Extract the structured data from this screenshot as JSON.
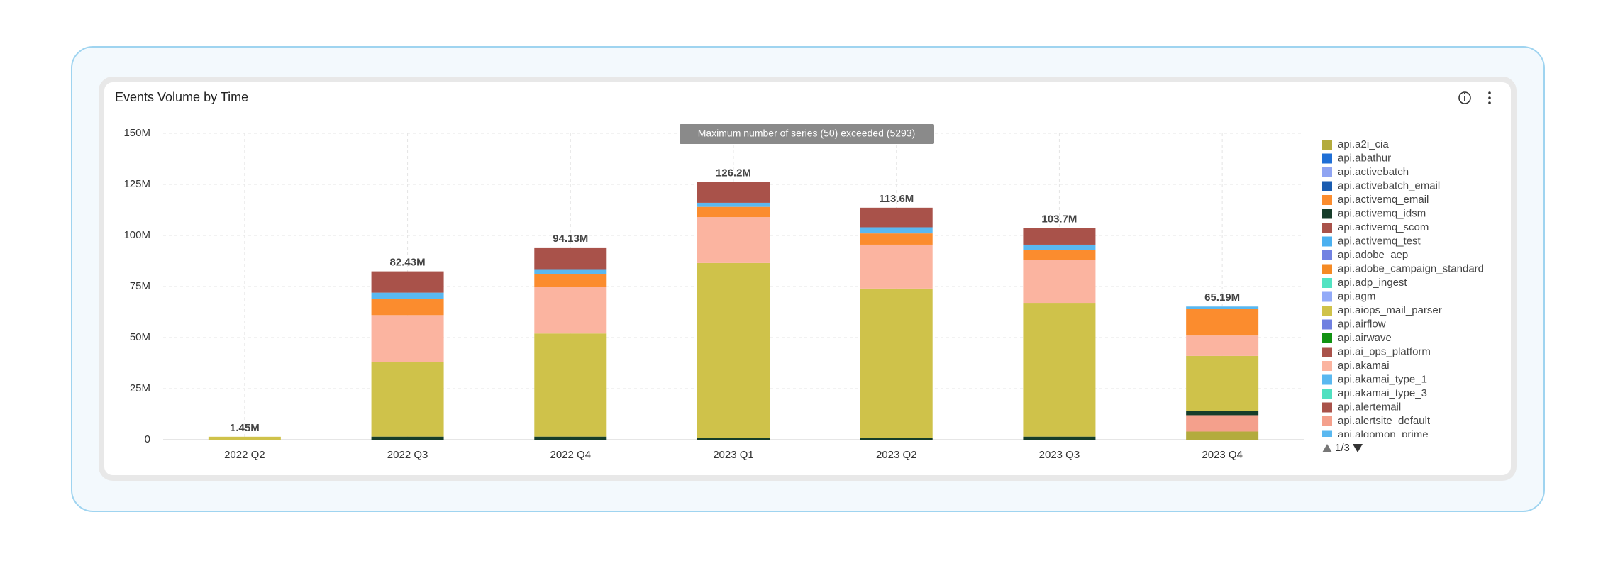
{
  "chart_data": {
    "type": "stacked_bar",
    "title": "Events Volume by Time",
    "notice": "Maximum number of series (50) exceeded (5293)",
    "categories": [
      "2022 Q2",
      "2022 Q3",
      "2022 Q4",
      "2023 Q1",
      "2023 Q2",
      "2023 Q3",
      "2023 Q4"
    ],
    "totals": [
      1450000,
      82430000,
      94130000,
      126200000,
      113600000,
      103700000,
      65190000
    ],
    "total_labels": [
      "1.45M",
      "82.43M",
      "94.13M",
      "126.2M",
      "113.6M",
      "103.7M",
      "65.19M"
    ],
    "ylim": [
      0,
      150000000
    ],
    "yticks": [
      0,
      {
        "value": 25000000,
        "label": "25M"
      },
      {
        "value": 50000000,
        "label": "50M"
      },
      {
        "value": 75000000,
        "label": "75M"
      },
      {
        "value": 100000000,
        "label": "100M"
      },
      {
        "value": 125000000,
        "label": "125M"
      },
      {
        "value": 150000000,
        "label": "150M"
      }
    ],
    "grid": true,
    "legend_page": "1/3",
    "series": [
      {
        "name": "api.a2i_cia",
        "color": "#b3ab3d",
        "values": [
          0,
          0,
          0,
          0,
          0,
          0,
          4000000
        ]
      },
      {
        "name": "api.abathur",
        "color": "#1f6fd6",
        "values": [
          0,
          0,
          0,
          0,
          0,
          0,
          0
        ]
      },
      {
        "name": "api.activebatch",
        "color": "#8fa4f2",
        "values": [
          0,
          0,
          0,
          0,
          0,
          0,
          0
        ]
      },
      {
        "name": "api.activebatch_email",
        "color": "#1a5cb0",
        "values": [
          0,
          0,
          0,
          0,
          0,
          0,
          0
        ]
      },
      {
        "name": "api.activemq_email",
        "color": "#fb8c2e",
        "values": [
          0,
          8000000,
          6000000,
          5000000,
          5500000,
          5000000,
          13000000
        ]
      },
      {
        "name": "api.activemq_idsm",
        "color": "#163d2a",
        "values": [
          0,
          1500000,
          1500000,
          1000000,
          1000000,
          1500000,
          2000000
        ]
      },
      {
        "name": "api.activemq_scom",
        "color": "#a9524a",
        "values": [
          0,
          0,
          0,
          0,
          0,
          0,
          0
        ]
      },
      {
        "name": "api.activemq_test",
        "color": "#4bb0f0",
        "values": [
          0,
          0,
          0,
          0,
          0,
          0,
          0
        ]
      },
      {
        "name": "api.adobe_aep",
        "color": "#7282e2",
        "values": [
          0,
          0,
          0,
          0,
          0,
          0,
          0
        ]
      },
      {
        "name": "api.adobe_campaign_standard",
        "color": "#f58a24",
        "values": [
          0,
          0,
          0,
          0,
          0,
          0,
          0
        ]
      },
      {
        "name": "api.adp_ingest",
        "color": "#52e3c2",
        "values": [
          0,
          0,
          0,
          0,
          0,
          0,
          0
        ]
      },
      {
        "name": "api.agm",
        "color": "#92aaf8",
        "values": [
          0,
          0,
          0,
          0,
          0,
          0,
          0
        ]
      },
      {
        "name": "api.aiops_mail_parser",
        "color": "#cfc24a",
        "values": [
          1450000,
          36500000,
          50500000,
          85500000,
          73000000,
          65500000,
          27000000
        ]
      },
      {
        "name": "api.airflow",
        "color": "#7080e0",
        "values": [
          0,
          0,
          0,
          0,
          0,
          0,
          0
        ]
      },
      {
        "name": "api.airwave",
        "color": "#129212",
        "values": [
          0,
          0,
          0,
          0,
          0,
          0,
          0
        ]
      },
      {
        "name": "api.ai_ops_platform",
        "color": "#a9524a",
        "values": [
          0,
          10430000,
          10630000,
          10200000,
          9600000,
          8200000,
          0
        ]
      },
      {
        "name": "api.akamai",
        "color": "#fbb4a0",
        "values": [
          0,
          23000000,
          23000000,
          22500000,
          21500000,
          21000000,
          10000000
        ]
      },
      {
        "name": "api.akamai_type_1",
        "color": "#5ab8f0",
        "values": [
          0,
          3000000,
          2500000,
          2000000,
          3000000,
          2500000,
          1190000
        ]
      },
      {
        "name": "api.akamai_type_3",
        "color": "#50e0c0",
        "values": [
          0,
          0,
          0,
          0,
          0,
          0,
          0
        ]
      },
      {
        "name": "api.alertemail",
        "color": "#a9524a",
        "values": [
          0,
          0,
          0,
          0,
          0,
          0,
          0
        ]
      },
      {
        "name": "api.alertsite_default",
        "color": "#f4a08c",
        "values": [
          0,
          0,
          0,
          0,
          0,
          0,
          8000000
        ]
      },
      {
        "name": "api.algomon_prime",
        "color": "#5ab8f0",
        "values": [
          0,
          0,
          0,
          0,
          0,
          0,
          0
        ]
      }
    ]
  }
}
